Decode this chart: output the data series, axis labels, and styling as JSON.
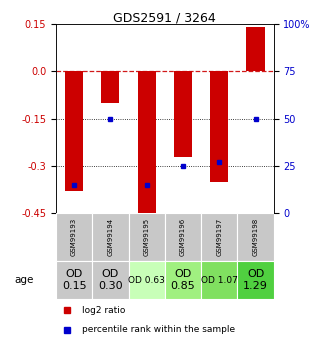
{
  "title": "GDS2591 / 3264",
  "samples": [
    "GSM99193",
    "GSM99194",
    "GSM99195",
    "GSM99196",
    "GSM99197",
    "GSM99198"
  ],
  "log2_ratio": [
    -0.38,
    -0.1,
    -0.47,
    -0.27,
    -0.35,
    0.14
  ],
  "percentile_rank": [
    15,
    50,
    15,
    25,
    27,
    50
  ],
  "ylim_left": [
    -0.45,
    0.15
  ],
  "ylim_right": [
    0,
    100
  ],
  "yticks_left": [
    0.15,
    0.0,
    -0.15,
    -0.3,
    -0.45
  ],
  "yticks_right": [
    100,
    75,
    50,
    25,
    0
  ],
  "age_labels": [
    "OD\n0.15",
    "OD\n0.30",
    "OD 0.63",
    "OD\n0.85",
    "OD 1.07",
    "OD\n1.29"
  ],
  "age_fontsizes": [
    8,
    8,
    6.5,
    8,
    6.5,
    8
  ],
  "age_colors": [
    "#c8c8c8",
    "#c8c8c8",
    "#c8ffb8",
    "#a0f080",
    "#80e060",
    "#50d040"
  ],
  "sample_color": "#c8c8c8",
  "bar_color": "#cc0000",
  "dot_color": "#0000cc",
  "zero_line_color": "#cc0000",
  "bg_color": "#ffffff",
  "label_log2": "log2 ratio",
  "label_pct": "percentile rank within the sample"
}
